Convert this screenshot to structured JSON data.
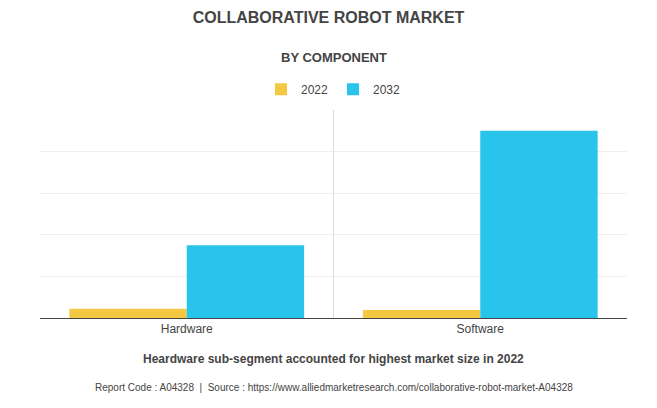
{
  "chart_data": {
    "type": "bar",
    "title": "COLLABORATIVE ROBOT MARKET",
    "subtitle": "BY COMPONENT",
    "categories": [
      "Hardware",
      "Software"
    ],
    "series": [
      {
        "name": "2022",
        "color": "#F5C842",
        "values": [
          0.45,
          0.38
        ]
      },
      {
        "name": "2032",
        "color": "#29C4EC",
        "values": [
          3.5,
          9.0
        ]
      }
    ],
    "ylim": [
      0,
      10
    ],
    "yticks": [
      0,
      2,
      4,
      6,
      8,
      10
    ],
    "grid": true,
    "tick_labels": "x",
    "legend": "top",
    "annotations": [
      "Heardware sub-segment accounted for highest market size in 2022",
      "Report Code : A04328  |  Source : https://www.alliedmarketresearch.com/collaborative-robot-market-A04328"
    ]
  }
}
